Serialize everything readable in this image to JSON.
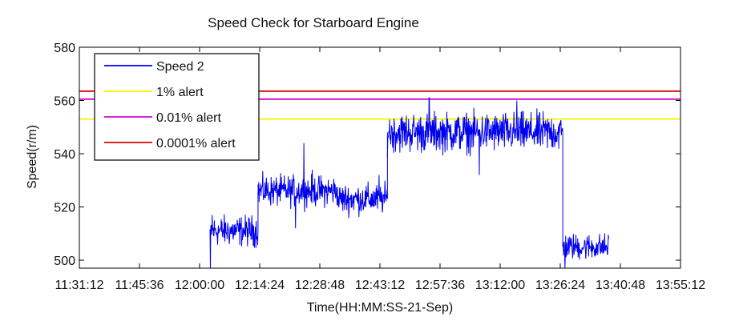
{
  "chart_data": {
    "type": "line",
    "title": "Speed Check for Starboard Engine",
    "xlabel": "Time(HH:MM:SS-21-Sep)",
    "ylabel": "Speed(r/m)",
    "xticks": [
      "11:31:12",
      "11:45:36",
      "12:00:00",
      "12:14:24",
      "12:28:48",
      "12:43:12",
      "12:57:36",
      "13:12:00",
      "13:26:24",
      "13:40:48",
      "13:55:12"
    ],
    "yticks": [
      500,
      520,
      540,
      560,
      580
    ],
    "xlim": [
      "11:31:12",
      "13:55:12"
    ],
    "ylim": [
      497,
      580
    ],
    "grid": false,
    "legend_position": "top-left",
    "series": [
      {
        "name": "Speed 2",
        "color": "#0000ee",
        "segments": [
          {
            "x": [
              "12:02:30",
              "12:14:00"
            ],
            "y_mean": 511,
            "noise": 3.5,
            "spikes": [
              [
                "12:02:35",
                497
              ],
              [
                "12:03:00",
                517
              ]
            ]
          },
          {
            "x": [
              "12:14:00",
              "12:33:00"
            ],
            "y_mean": 526,
            "noise": 3.5,
            "spikes": [
              [
                "12:23:00",
                512
              ],
              [
                "12:25:00",
                544
              ],
              [
                "12:27:00",
                534
              ]
            ]
          },
          {
            "x": [
              "12:33:00",
              "12:45:00"
            ],
            "y_mean": 523,
            "noise": 3.5,
            "spikes": [
              [
                "12:43:00",
                532
              ]
            ]
          },
          {
            "x": [
              "12:45:00",
              "13:27:00"
            ],
            "y_mean": 548,
            "noise": 4.5,
            "spikes": [
              [
                "12:55:00",
                561
              ],
              [
                "13:07:00",
                532
              ],
              [
                "13:16:00",
                560
              ]
            ]
          },
          {
            "x": [
              "13:27:00",
              "13:38:00"
            ],
            "y_mean": 505,
            "noise": 3.0,
            "spikes": [
              [
                "13:27:30",
                497
              ]
            ]
          }
        ]
      },
      {
        "name": "1% alert",
        "color": "#f5f500",
        "y": 553
      },
      {
        "name": "0.01% alert",
        "color": "#d000d0",
        "y": 560.5
      },
      {
        "name": "0.0001% alert",
        "color": "#d80000",
        "y": 563.5
      }
    ]
  }
}
